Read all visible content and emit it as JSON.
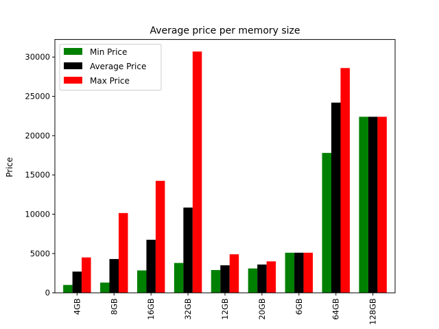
{
  "chart_data": {
    "type": "bar",
    "title": "Average price per memory size",
    "xlabel": "",
    "ylabel": "Price",
    "categories": [
      "4GB",
      "8GB",
      "16GB",
      "32GB",
      "12GB",
      "20GB",
      "6GB",
      "64GB",
      "128GB"
    ],
    "series": [
      {
        "name": "Min Price",
        "color": "#008000",
        "values": [
          1000,
          1300,
          2850,
          3800,
          2900,
          3100,
          5100,
          17800,
          22400
        ]
      },
      {
        "name": "Average Price",
        "color": "#000000",
        "values": [
          2700,
          4300,
          6750,
          10850,
          3500,
          3600,
          5100,
          24200,
          22400
        ]
      },
      {
        "name": "Max Price",
        "color": "#ff0000",
        "values": [
          4500,
          10150,
          14250,
          30700,
          4900,
          4000,
          5100,
          28600,
          22400
        ]
      }
    ],
    "ylim": [
      0,
      32235
    ],
    "yticks": [
      0,
      5000,
      10000,
      15000,
      20000,
      25000,
      30000
    ],
    "grid": false,
    "legend_position": "upper-left"
  }
}
